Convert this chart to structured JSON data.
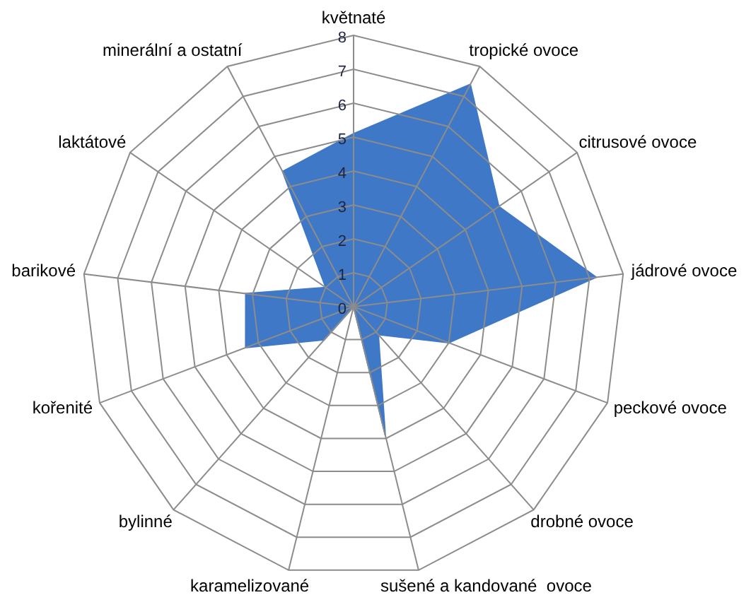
{
  "chart_data": {
    "type": "radar",
    "categories": [
      "květnaté",
      "tropické ovoce",
      "citrusové ovoce",
      "jádrové ovoce",
      "peckové ovoce",
      "drobné ovoce",
      "sušené a kandované  ovoce",
      "karamelizované",
      "bylinné",
      "kořenité",
      "barikové",
      "laktátové",
      "minerální a ostatní"
    ],
    "series": [
      {
        "color": "#3f78c6",
        "values": [
          5.1,
          7.4,
          5.2,
          7.2,
          3.0,
          1.1,
          3.9,
          0,
          1.3,
          3.4,
          3.2,
          1.0,
          4.5
        ]
      }
    ],
    "ylim": [
      0,
      8
    ],
    "yticks": [
      0,
      1,
      2,
      3,
      4,
      5,
      6,
      7,
      8
    ],
    "grid": true,
    "marker": "none"
  }
}
